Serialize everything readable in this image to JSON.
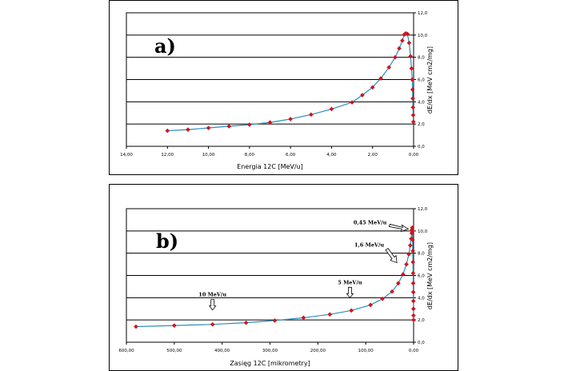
{
  "chart_data": [
    {
      "type": "line",
      "panel_label": "a)",
      "xlabel": "Energia 12C [MeV/u]",
      "ylabel": "dE/dx [MeV cm2/mg]",
      "xlim": [
        14,
        0
      ],
      "ylim": [
        0,
        12
      ],
      "x_ticks": [
        "14,00",
        "12,00",
        "10,00",
        "8,00",
        "6,00",
        "4,00",
        "2,00",
        "0,00"
      ],
      "y_ticks": [
        "0,0",
        "2,0",
        "4,0",
        "6,0",
        "8,0",
        "10,0",
        "12,0"
      ],
      "grid": "horizontal",
      "series": [
        {
          "color": "#d0141e",
          "line_color": "#2a8fc0",
          "points": [
            [
              12.0,
              1.4
            ],
            [
              11.0,
              1.5
            ],
            [
              10.0,
              1.65
            ],
            [
              9.0,
              1.8
            ],
            [
              8.0,
              1.95
            ],
            [
              7.0,
              2.15
            ],
            [
              6.0,
              2.45
            ],
            [
              5.0,
              2.85
            ],
            [
              4.0,
              3.35
            ],
            [
              3.0,
              3.95
            ],
            [
              2.5,
              4.6
            ],
            [
              2.0,
              5.3
            ],
            [
              1.6,
              6.1
            ],
            [
              1.2,
              7.1
            ],
            [
              0.9,
              8.0
            ],
            [
              0.7,
              8.8
            ],
            [
              0.55,
              9.5
            ],
            [
              0.45,
              10.05
            ],
            [
              0.38,
              10.15
            ],
            [
              0.3,
              10.1
            ],
            [
              0.22,
              9.3
            ],
            [
              0.15,
              8.1
            ],
            [
              0.1,
              7.0
            ],
            [
              0.07,
              6.0
            ],
            [
              0.05,
              5.1
            ],
            [
              0.04,
              4.3
            ],
            [
              0.03,
              3.5
            ],
            [
              0.02,
              2.8
            ],
            [
              0.01,
              2.2
            ]
          ]
        }
      ]
    },
    {
      "type": "line",
      "panel_label": "b)",
      "xlabel": "Zasięg 12C [mikrometry]",
      "ylabel": "dE/dx [MeV cm2/mg]",
      "xlim": [
        600,
        0
      ],
      "ylim": [
        0,
        12
      ],
      "x_ticks": [
        "600,00",
        "500,00",
        "400,00",
        "300,00",
        "200,00",
        "100,00",
        "0,00"
      ],
      "y_ticks": [
        "0,0",
        "2,0",
        "4,0",
        "6,0",
        "8,0",
        "10,0",
        "12,0"
      ],
      "grid": "horizontal",
      "annotations": [
        {
          "text": "10 MeV/u",
          "x": 420,
          "y": 2.9
        },
        {
          "text": "5 MeV/u",
          "x": 133,
          "y": 4.0
        },
        {
          "text": "1,6 MeV/u",
          "x": 35,
          "y": 7.0
        },
        {
          "text": "0,45 MeV/u",
          "x": 6,
          "y": 10.1
        }
      ],
      "series": [
        {
          "color": "#d0141e",
          "line_color": "#2a8fc0",
          "points": [
            [
              580,
              1.4
            ],
            [
              500,
              1.5
            ],
            [
              420,
              1.6
            ],
            [
              350,
              1.75
            ],
            [
              290,
              1.95
            ],
            [
              230,
              2.2
            ],
            [
              175,
              2.5
            ],
            [
              130,
              2.85
            ],
            [
              90,
              3.35
            ],
            [
              65,
              3.9
            ],
            [
              45,
              4.55
            ],
            [
              32,
              5.3
            ],
            [
              22,
              6.1
            ],
            [
              15,
              7.0
            ],
            [
              10,
              7.9
            ],
            [
              7,
              8.7
            ],
            [
              5,
              9.3
            ],
            [
              4,
              9.8
            ],
            [
              3.5,
              10.1
            ],
            [
              3,
              10.3
            ],
            [
              2.5,
              10.0
            ],
            [
              2,
              9.2
            ],
            [
              1.6,
              8.2
            ],
            [
              1.3,
              7.2
            ],
            [
              1.0,
              6.2
            ],
            [
              0.8,
              5.3
            ],
            [
              0.6,
              4.5
            ],
            [
              0.4,
              3.7
            ],
            [
              0.3,
              3.0
            ],
            [
              0.2,
              2.4
            ],
            [
              0.1,
              2.0
            ]
          ]
        }
      ]
    }
  ]
}
